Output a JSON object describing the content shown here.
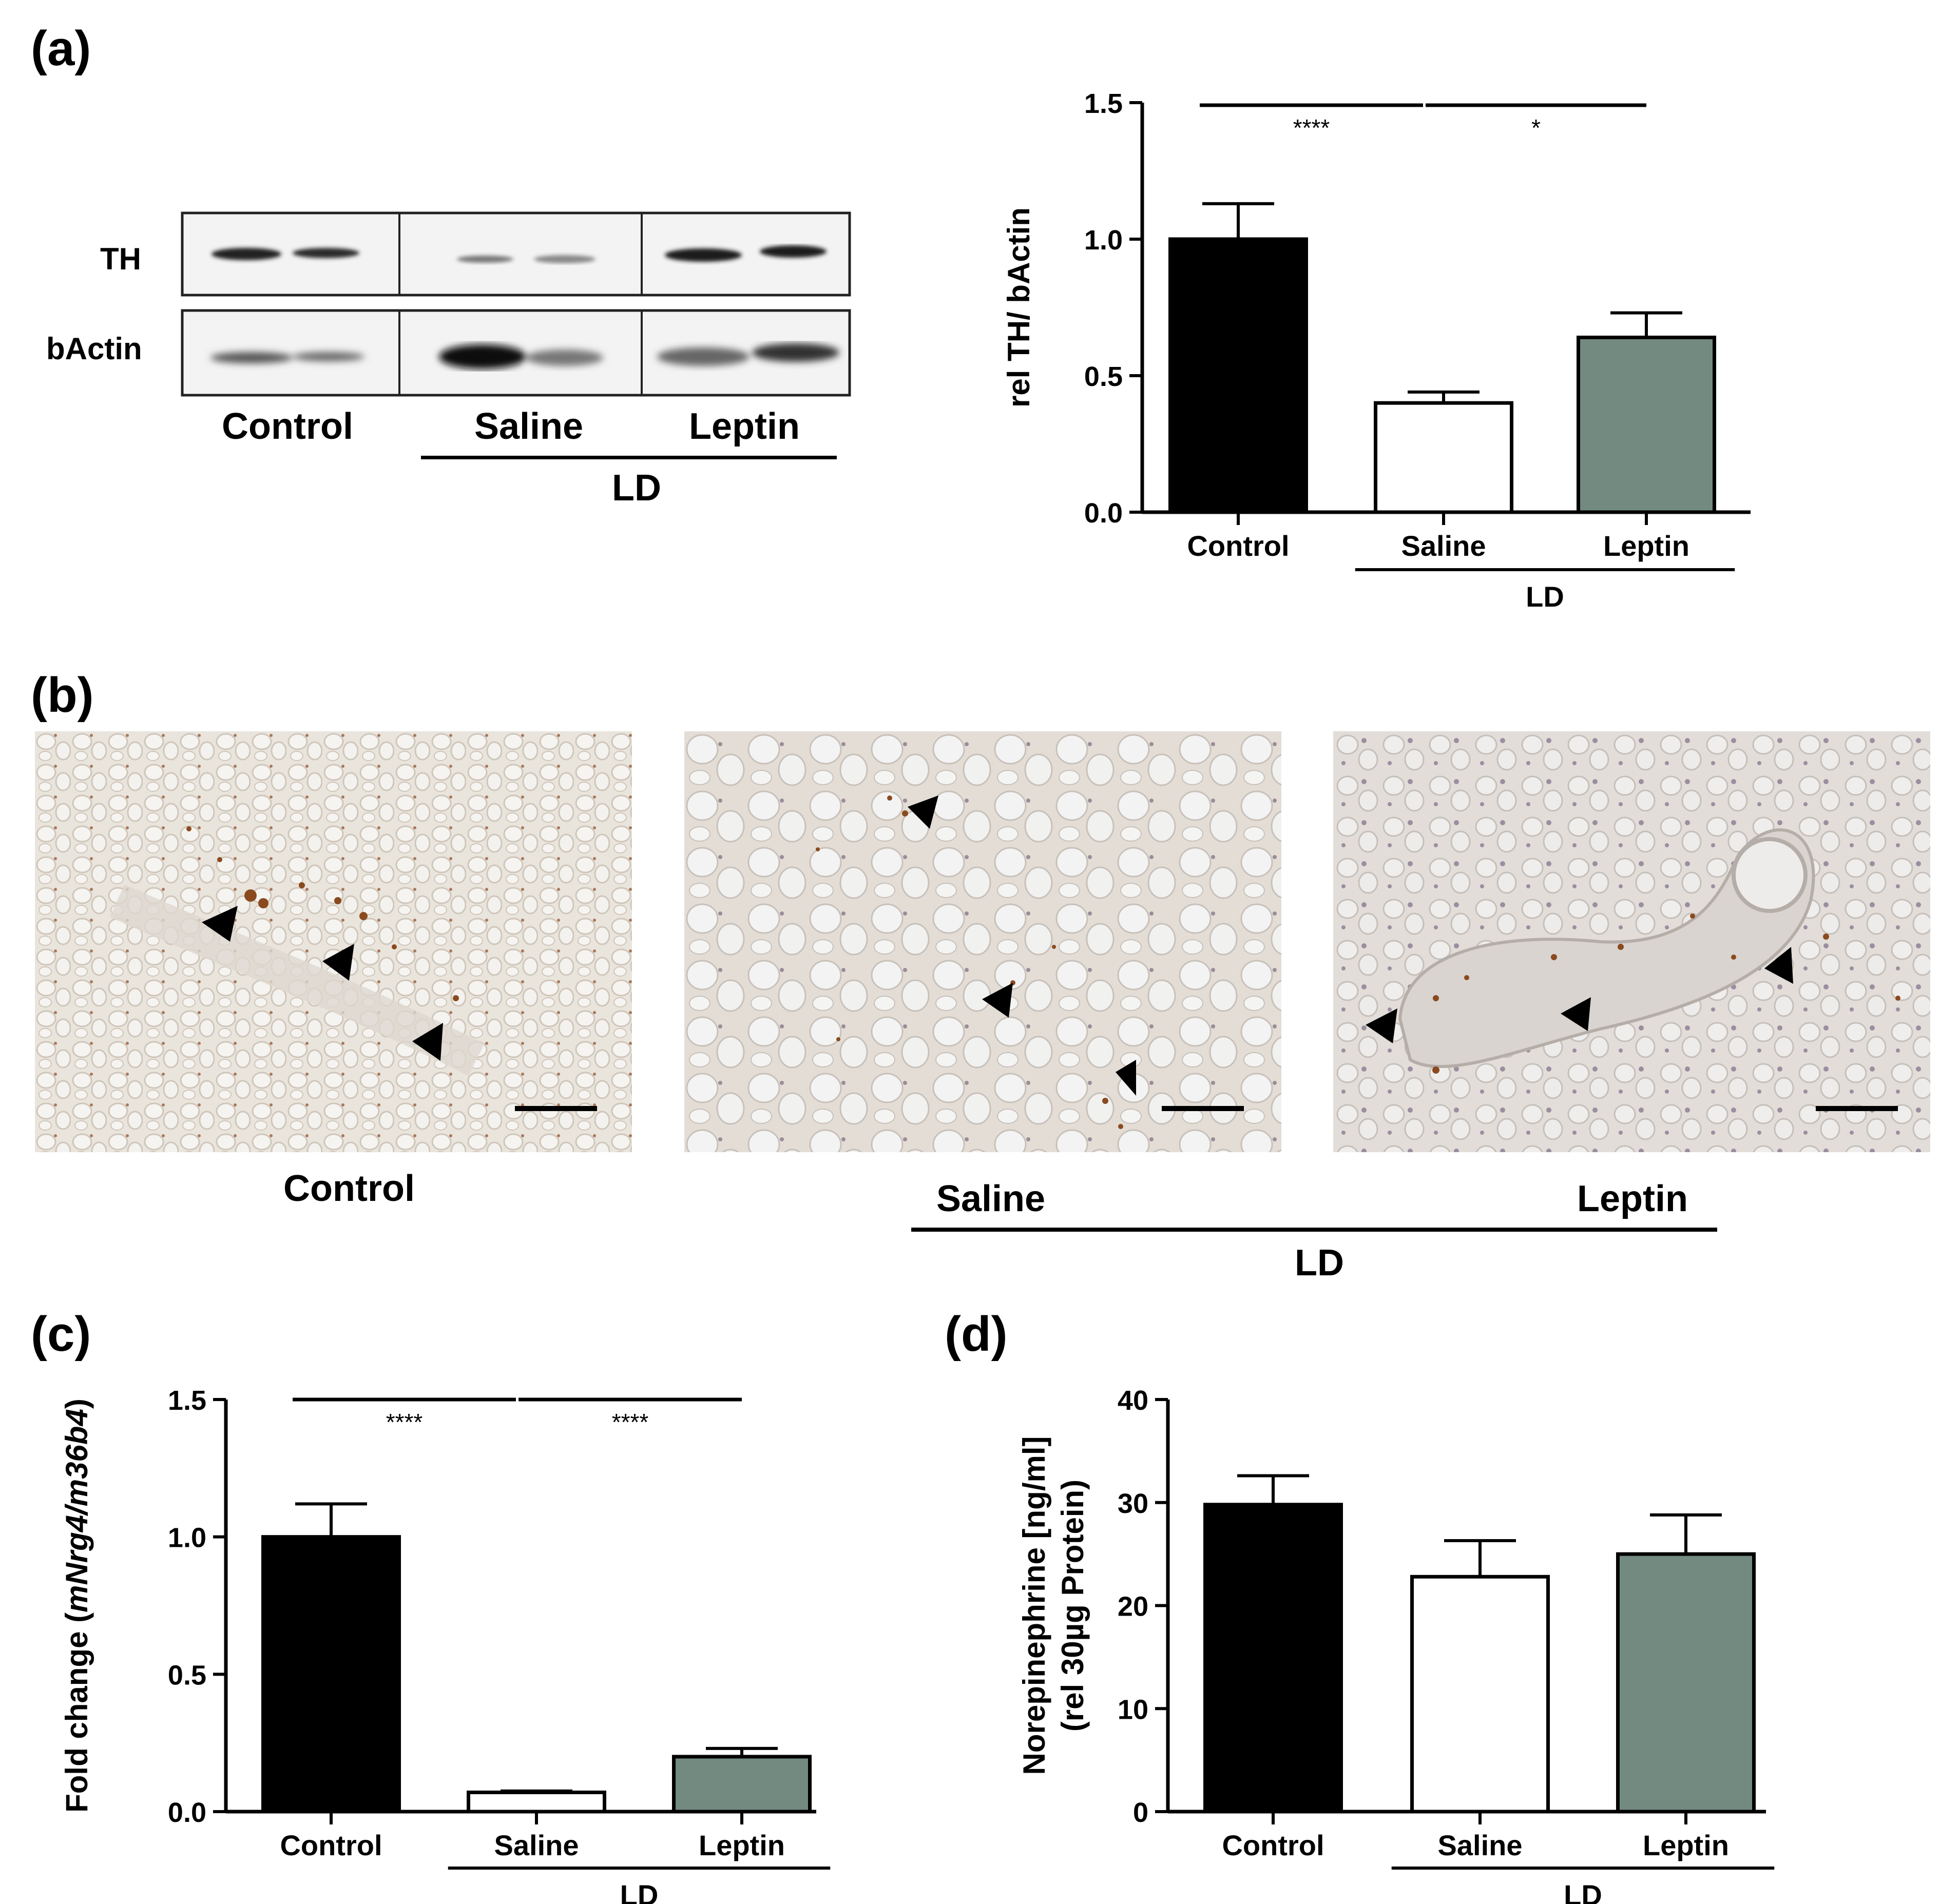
{
  "panels": {
    "a": "(a)",
    "b": "(b)",
    "c": "(c)",
    "d": "(d)"
  },
  "blot": {
    "rows": [
      "TH",
      "bActin"
    ],
    "groups": [
      "Control",
      "Saline",
      "Leptin"
    ],
    "bracket_label": "LD"
  },
  "micrographs": {
    "labels": [
      "Control",
      "Saline",
      "Leptin"
    ],
    "bracket_label": "LD"
  },
  "colors": {
    "control": "#000000",
    "saline": "#ffffff",
    "leptin": "#738a80"
  },
  "chart_data": [
    {
      "id": "a",
      "type": "bar",
      "categories": [
        "Control",
        "Saline",
        "Leptin"
      ],
      "values": [
        1.0,
        0.4,
        0.64
      ],
      "errors": [
        0.13,
        0.04,
        0.09
      ],
      "ylabel": "rel TH/ bActin",
      "ylim": [
        0,
        1.5
      ],
      "yticks": [
        "0.0",
        "0.5",
        "1.0",
        "1.5"
      ],
      "ytick_values": [
        0,
        0.5,
        1.0,
        1.5
      ],
      "group_bracket": {
        "label": "LD",
        "from": "Saline",
        "to": "Leptin"
      },
      "significance": [
        {
          "from": "Control",
          "to": "Saline",
          "label": "****"
        },
        {
          "from": "Saline",
          "to": "Leptin",
          "label": "*"
        }
      ]
    },
    {
      "id": "c",
      "type": "bar",
      "categories": [
        "Control",
        "Saline",
        "Leptin"
      ],
      "values": [
        1.0,
        0.07,
        0.2
      ],
      "errors": [
        0.12,
        0.005,
        0.03
      ],
      "ylabel_prefix": "Fold change (",
      "ylabel_italic": "mNrg4/m36b4",
      "ylabel_suffix": ")",
      "ylim": [
        0,
        1.5
      ],
      "yticks": [
        "0.0",
        "0.5",
        "1.0",
        "1.5"
      ],
      "ytick_values": [
        0,
        0.5,
        1.0,
        1.5
      ],
      "group_bracket": {
        "label": "LD",
        "from": "Saline",
        "to": "Leptin"
      },
      "significance": [
        {
          "from": "Control",
          "to": "Saline",
          "label": "****"
        },
        {
          "from": "Saline",
          "to": "Leptin",
          "label": "****"
        }
      ]
    },
    {
      "id": "d",
      "type": "bar",
      "categories": [
        "Control",
        "Saline",
        "Leptin"
      ],
      "values": [
        29.8,
        22.8,
        25.0
      ],
      "errors": [
        2.8,
        3.5,
        3.8
      ],
      "ylabel_lines": [
        "Norepinephrine [ng/ml]",
        "(rel 30µg Protein)"
      ],
      "ylim": [
        0,
        40
      ],
      "yticks": [
        "0",
        "10",
        "20",
        "30",
        "40"
      ],
      "ytick_values": [
        0,
        10,
        20,
        30,
        40
      ],
      "group_bracket": {
        "label": "LD",
        "from": "Saline",
        "to": "Leptin"
      },
      "significance": []
    }
  ]
}
